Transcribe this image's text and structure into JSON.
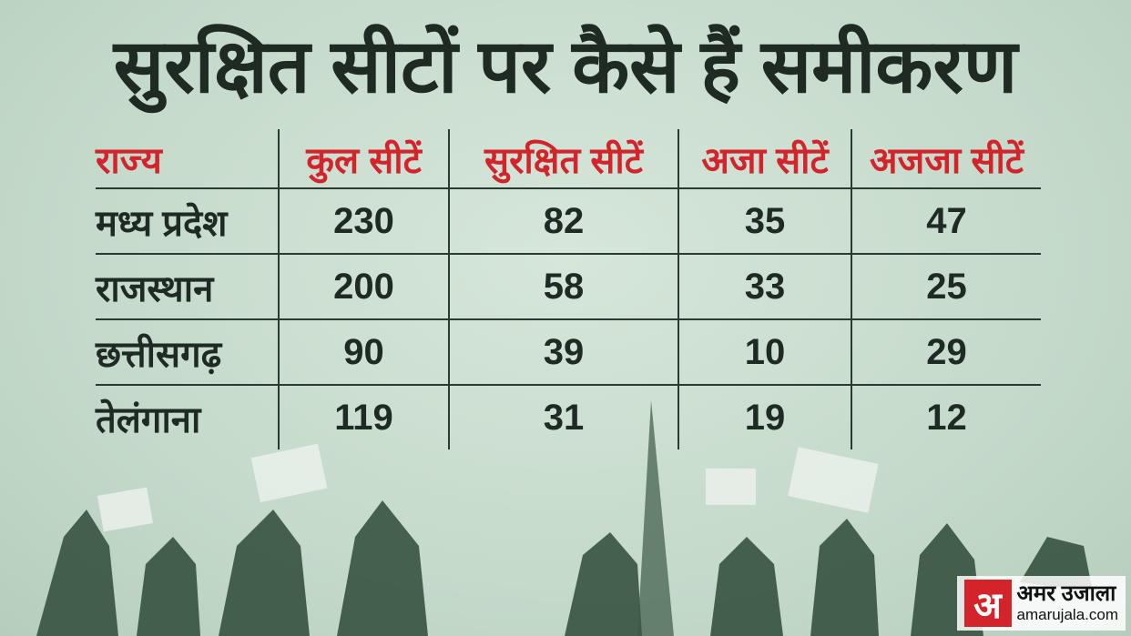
{
  "title": "सुरक्षित सीटों पर कैसे हैं समीकरण",
  "table": {
    "header": [
      "राज्य",
      "कुल सीटें",
      "सुरक्षित सीटें",
      "अजा सीटें",
      "अजजा सीटें"
    ],
    "rows": [
      [
        "मध्य प्रदेश",
        230,
        82,
        35,
        47
      ],
      [
        "राजस्थान",
        200,
        58,
        33,
        25
      ],
      [
        "छत्तीसगढ़",
        90,
        39,
        10,
        29
      ],
      [
        "तेलंगाना",
        119,
        31,
        19,
        12
      ]
    ]
  },
  "logo": {
    "mark": "अ",
    "name": "अमर उजाला",
    "site": "amarujala.com"
  }
}
